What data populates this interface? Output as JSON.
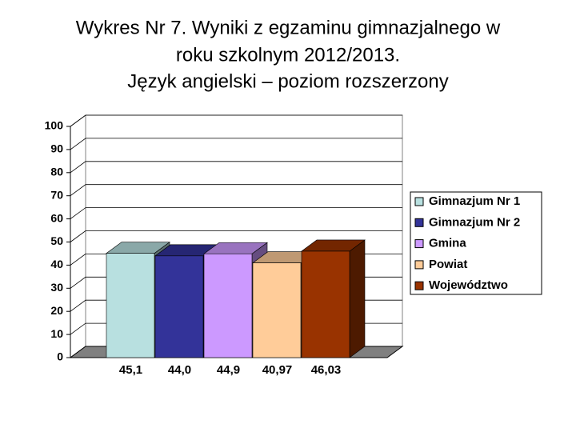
{
  "chart_data": {
    "type": "bar3d",
    "title": [
      "Wykres Nr 7. Wyniki z egzaminu gimnazjalnego   w",
      "roku szkolnym 2012/2013.",
      "Język angielski – poziom rozszerzony"
    ],
    "series": [
      {
        "name": "Gimnazjum Nr 1",
        "color": "#b8e0e0",
        "values": [
          45.1
        ],
        "value_labels": [
          "45,1"
        ]
      },
      {
        "name": "Gimnazjum Nr 2",
        "color": "#333399",
        "values": [
          44.0
        ],
        "value_labels": [
          "44,0"
        ]
      },
      {
        "name": "Gmina",
        "color": "#cc99ff",
        "values": [
          44.9
        ],
        "value_labels": [
          "44,9"
        ]
      },
      {
        "name": "Powiat",
        "color": "#ffcc99",
        "values": [
          40.97
        ],
        "value_labels": [
          "40,97"
        ]
      },
      {
        "name": "Województwo",
        "color": "#993300",
        "values": [
          46.03
        ],
        "value_labels": [
          "46,03"
        ]
      }
    ],
    "ylim": [
      0,
      100
    ],
    "yticks": [
      0,
      10,
      20,
      30,
      40,
      50,
      60,
      70,
      80,
      90,
      100
    ],
    "grid": true
  }
}
